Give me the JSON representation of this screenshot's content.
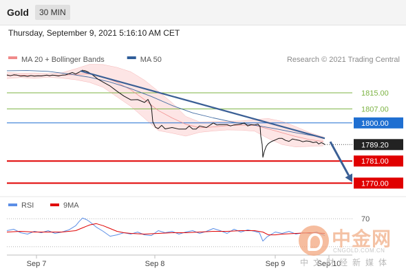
{
  "header": {
    "symbol": "Gold",
    "timeframe": "30 MIN"
  },
  "timestamp": "Thursday, September 9, 2021 5:16:10 AM CET",
  "copyright": "Research © 2021 Trading Central",
  "watermark": {
    "title": "中金网",
    "domain": "CNGOLD.COM.CN",
    "tagline": "中文财经新媒体"
  },
  "colors": {
    "price": "#111111",
    "bollinger": "#f08a8a",
    "bollinger_fill": "#fde2e2",
    "ma50": "#2f5d99",
    "trendline": "#3a5f95",
    "resistance": "#7cb342",
    "pivot": "#1f6fd1",
    "support": "#e00000",
    "rsi": "#5b8ee6",
    "rsi_ma": "#e00000",
    "current_label": "#222222"
  },
  "chart_data": [
    {
      "type": "line",
      "title": "",
      "legend": [
        {
          "name": "MA 20 + Bollinger Bands",
          "color": "#f08a8a"
        },
        {
          "name": "MA 50",
          "color": "#2f5d99"
        }
      ],
      "x_ticks": [
        "Sep 7",
        "Sep 8",
        "Sep 9",
        "Sep 10"
      ],
      "ylim": [
        1766,
        1827
      ],
      "series": [
        {
          "name": "Price",
          "x": [
            0,
            5,
            10,
            15,
            20,
            25,
            30,
            35,
            40,
            45,
            50,
            54,
            58,
            62,
            66,
            70,
            75,
            80,
            85,
            90,
            95,
            100,
            105,
            110,
            112,
            113,
            118,
            125,
            132,
            140,
            150,
            160,
            170,
            180,
            190,
            200,
            205,
            210,
            212,
            216,
            220,
            225,
            230,
            240,
            250,
            260,
            265,
            270,
            275,
            280,
            290,
            300,
            305,
            310,
            315,
            320,
            325,
            330,
            340,
            345,
            350,
            355,
            360,
            365,
            368,
            369,
            371,
            372,
            374,
            377,
            380,
            385,
            390,
            395,
            400,
            405,
            410,
            415,
            420,
            425,
            430,
            435,
            440,
            445,
            450,
            453,
            457,
            460,
            462
          ],
          "values": [
            1823.9,
            1823.5,
            1824.0,
            1823.8,
            1823.3,
            1823.5,
            1823.2,
            1823.6,
            1823.3,
            1823.5,
            1823.4,
            1823.6,
            1823.8,
            1823.5,
            1823.8,
            1823.7,
            1823.4,
            1823.8,
            1823.9,
            1824.5,
            1825.1,
            1824.4,
            1825.3,
            1826.3,
            1825.9,
            1826.1,
            1825.4,
            1823.8,
            1821.9,
            1820.3,
            1818.4,
            1815.8,
            1813.4,
            1811.5,
            1811.6,
            1810.2,
            1811.7,
            1808.2,
            1800.6,
            1797.8,
            1797.2,
            1798.8,
            1797.0,
            1797.7,
            1796.9,
            1796.9,
            1798.5,
            1796.9,
            1796.9,
            1798.5,
            1797.7,
            1800.0,
            1799.0,
            1799.1,
            1799.1,
            1799.1,
            1798.5,
            1799.0,
            1799.4,
            1800.0,
            1798.5,
            1799.1,
            1799.0,
            1799.4,
            1798.1,
            1793.3,
            1789.2,
            1782.9,
            1785.7,
            1788.4,
            1789.7,
            1790.8,
            1791.5,
            1792.3,
            1792.3,
            1791.3,
            1790.8,
            1792.0,
            1791.6,
            1791.3,
            1790.6,
            1791.0,
            1790.8,
            1790.2,
            1790.5,
            1789.5,
            1790.2,
            1789.7,
            1789.2
          ]
        },
        {
          "name": "MA 20",
          "x": [
            0,
            20,
            40,
            60,
            80,
            100,
            120,
            140,
            160,
            180,
            200,
            220,
            240,
            260,
            280,
            300,
            320,
            340,
            360,
            380,
            400,
            420,
            440,
            460
          ],
          "values": [
            1823.6,
            1823.8,
            1823.5,
            1823.7,
            1823.7,
            1824.2,
            1824.5,
            1822.9,
            1820.2,
            1816.5,
            1811.6,
            1806.2,
            1802.5,
            1799.3,
            1797.6,
            1798.0,
            1798.6,
            1798.9,
            1798.8,
            1797.0,
            1795.1,
            1793.2,
            1791.7,
            1790.7
          ]
        },
        {
          "name": "Bollinger Upper",
          "x": [
            0,
            20,
            40,
            60,
            80,
            100,
            120,
            140,
            160,
            180,
            200,
            220,
            240,
            260,
            280,
            300,
            320,
            340,
            360,
            380,
            400,
            420,
            440,
            460
          ],
          "values": [
            1825.1,
            1824.8,
            1824.9,
            1824.6,
            1825.0,
            1827.0,
            1829.2,
            1829.1,
            1827.7,
            1825.5,
            1821.3,
            1815.8,
            1810.1,
            1803.2,
            1800.5,
            1800.7,
            1800.9,
            1801.0,
            1801.7,
            1802.2,
            1800.8,
            1798.1,
            1795.2,
            1793.0
          ]
        },
        {
          "name": "Bollinger Lower",
          "x": [
            0,
            20,
            40,
            60,
            80,
            100,
            120,
            140,
            160,
            180,
            200,
            220,
            240,
            260,
            280,
            300,
            320,
            340,
            360,
            380,
            400,
            420,
            440,
            460
          ],
          "values": [
            1822.1,
            1822.6,
            1822.2,
            1822.8,
            1822.3,
            1821.5,
            1820.2,
            1817.7,
            1813.0,
            1808.3,
            1802.3,
            1796.2,
            1794.9,
            1793.4,
            1795.3,
            1796.0,
            1796.5,
            1796.4,
            1795.9,
            1792.2,
            1789.2,
            1788.0,
            1788.3,
            1788.6
          ]
        },
        {
          "name": "MA 50",
          "x": [
            0,
            30,
            60,
            90,
            120,
            150,
            180,
            210,
            240,
            270,
            300,
            330,
            360,
            390,
            420,
            450,
            462
          ],
          "values": [
            1826.0,
            1826.1,
            1825.7,
            1824.4,
            1822.8,
            1820.4,
            1817.1,
            1813.2,
            1808.7,
            1805.0,
            1802.5,
            1800.3,
            1798.9,
            1797.1,
            1795.1,
            1793.3,
            1792.6
          ]
        },
        {
          "name": "Trendline",
          "x": [
            107,
            462
          ],
          "values": [
            1825.9,
            1792.3
          ]
        }
      ],
      "levels": [
        {
          "label": "1815.00",
          "value": 1815.0,
          "kind": "resistance"
        },
        {
          "label": "1807.00",
          "value": 1807.0,
          "kind": "resistance"
        },
        {
          "label": "1800.00",
          "value": 1800.0,
          "kind": "pivot"
        },
        {
          "label": "1789.20",
          "value": 1789.2,
          "kind": "current"
        },
        {
          "label": "1781.00",
          "value": 1781.0,
          "kind": "support"
        },
        {
          "label": "1770.00",
          "value": 1770.0,
          "kind": "support"
        }
      ],
      "forecast_arrow": {
        "from_x": 470,
        "from_y": 1790.6,
        "to_x": 502,
        "to_y": 1770.5
      }
    },
    {
      "type": "line",
      "title": "",
      "legend": [
        {
          "name": "RSI",
          "color": "#5b8ee6"
        },
        {
          "name": "9MA",
          "color": "#e00000"
        }
      ],
      "x_ticks": [
        "Sep 7",
        "Sep 8",
        "Sep 9",
        "Sep 10"
      ],
      "ylim": [
        25,
        76
      ],
      "reference_lines": [
        {
          "label": "70",
          "value": 70
        },
        {
          "value": 30
        }
      ],
      "series": [
        {
          "name": "RSI",
          "x": [
            0,
            10,
            20,
            30,
            40,
            50,
            60,
            70,
            80,
            90,
            100,
            105,
            110,
            115,
            120,
            130,
            140,
            150,
            160,
            170,
            180,
            190,
            200,
            210,
            220,
            230,
            240,
            250,
            260,
            270,
            280,
            290,
            300,
            310,
            320,
            330,
            340,
            350,
            360,
            367,
            372,
            378,
            390,
            400,
            410,
            420,
            430,
            440,
            450,
            462
          ],
          "values": [
            53,
            55,
            50,
            48,
            52,
            50,
            53,
            49,
            51,
            54,
            60,
            66,
            71,
            69,
            66,
            58,
            52,
            45,
            47,
            50,
            48,
            51,
            47,
            46,
            53,
            50,
            52,
            48,
            51,
            53,
            49,
            52,
            56,
            53,
            49,
            55,
            51,
            54,
            52,
            50,
            38,
            44,
            51,
            49,
            52,
            48,
            50,
            49,
            51,
            46
          ]
        },
        {
          "name": "9MA",
          "x": [
            0,
            20,
            40,
            60,
            80,
            100,
            110,
            120,
            130,
            140,
            150,
            160,
            170,
            180,
            200,
            220,
            240,
            260,
            280,
            300,
            320,
            340,
            360,
            372,
            380,
            390,
            400,
            420,
            440,
            462
          ],
          "values": [
            51,
            52,
            51,
            51,
            51,
            53,
            57,
            61,
            63,
            60,
            56,
            52,
            50,
            49,
            48,
            49,
            50,
            50,
            51,
            52,
            52,
            53,
            53,
            51,
            47,
            47,
            48,
            49,
            50,
            49
          ]
        }
      ]
    }
  ]
}
